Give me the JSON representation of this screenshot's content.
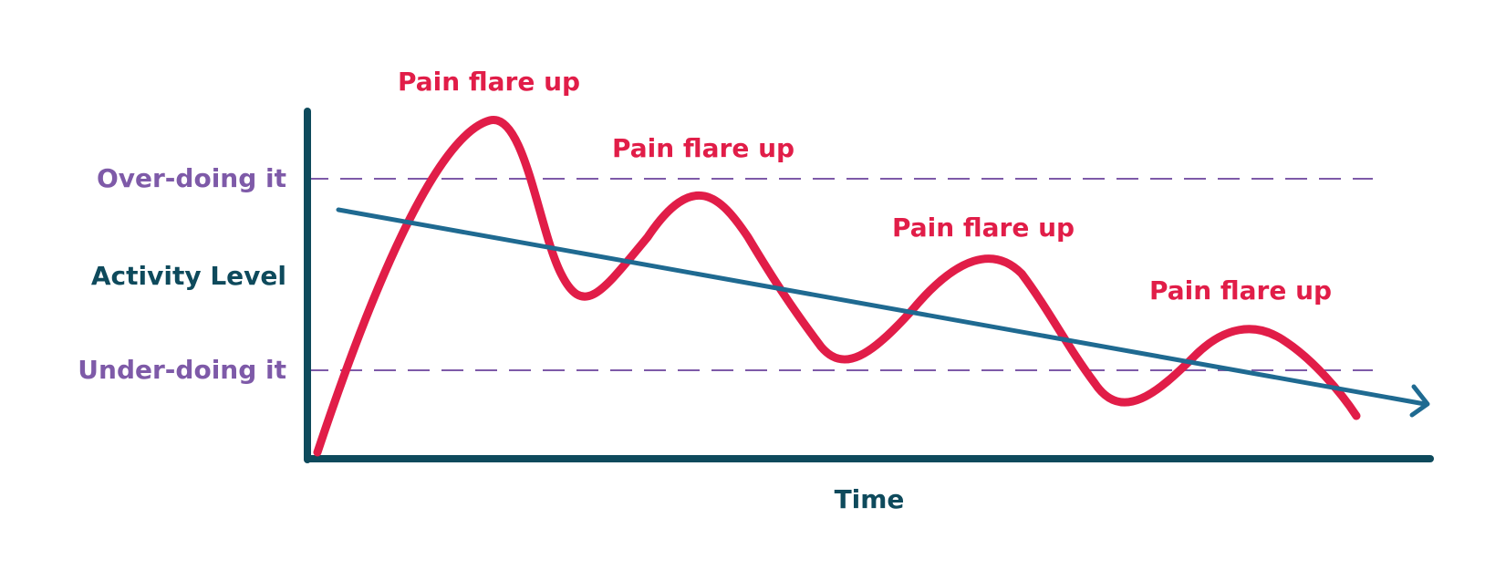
{
  "diagram": {
    "ylabel": "Activity Level",
    "xlabel": "Time",
    "levels": {
      "over": "Over-doing it",
      "under": "Under-doing it"
    },
    "flare_label": "Pain flare up",
    "colors": {
      "axis": "#0e4a5c",
      "pain_curve": "#e11d48",
      "trend_line": "#1f6a91",
      "level_text": "#7e5aa8",
      "flare_text": "#e11d48",
      "axis_text": "#0e4a5c"
    }
  }
}
